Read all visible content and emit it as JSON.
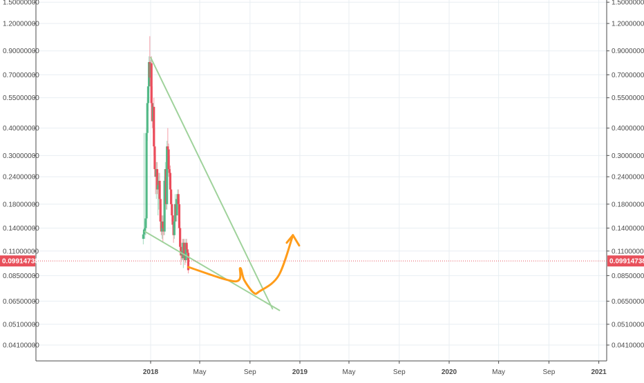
{
  "chart_data": {
    "type": "candlestick",
    "scale": "log",
    "grid": true,
    "y_ticks": [
      "1.50000000",
      "1.20000000",
      "0.90000000",
      "0.70000000",
      "0.55000000",
      "0.40000000",
      "0.30000000",
      "0.24000000",
      "0.18000000",
      "0.14000000",
      "0.11000000",
      "0.08500000",
      "0.06500000",
      "0.05100000",
      "0.04100000"
    ],
    "x_ticks": [
      "2018",
      "May",
      "Sep",
      "2019",
      "May",
      "Sep",
      "2020",
      "May",
      "Sep",
      "2021"
    ],
    "x_tick_dates": [
      "2018-01",
      "2018-05",
      "2018-09",
      "2019-01",
      "2019-05",
      "2019-09",
      "2020-01",
      "2020-05",
      "2020-09",
      "2021-01"
    ],
    "current_price": "0.09914738",
    "colors": {
      "up": "#53b987",
      "down": "#eb4d5c",
      "trendline": "#9fd29b",
      "projection": "#ff9c1a",
      "price_line": "#e8505b",
      "grid": "#e8eef2"
    },
    "candles": [
      {
        "date": "2017-12-14",
        "o": 0.125,
        "h": 0.135,
        "l": 0.118,
        "c": 0.131
      },
      {
        "date": "2017-12-16",
        "o": 0.131,
        "h": 0.38,
        "l": 0.125,
        "c": 0.138
      },
      {
        "date": "2017-12-18",
        "o": 0.136,
        "h": 0.15,
        "l": 0.125,
        "c": 0.14
      },
      {
        "date": "2017-12-20",
        "o": 0.14,
        "h": 0.16,
        "l": 0.13,
        "c": 0.155
      },
      {
        "date": "2017-12-22",
        "o": 0.155,
        "h": 0.4,
        "l": 0.145,
        "c": 0.38
      },
      {
        "date": "2017-12-24",
        "o": 0.38,
        "h": 0.55,
        "l": 0.35,
        "c": 0.52
      },
      {
        "date": "2017-12-26",
        "o": 0.52,
        "h": 0.8,
        "l": 0.48,
        "c": 0.62
      },
      {
        "date": "2017-12-28",
        "o": 0.62,
        "h": 0.85,
        "l": 0.58,
        "c": 0.8
      },
      {
        "date": "2017-12-30",
        "o": 0.8,
        "h": 1.05,
        "l": 0.62,
        "c": 0.68
      },
      {
        "date": "2018-01-01",
        "o": 0.68,
        "h": 0.82,
        "l": 0.62,
        "c": 0.79
      },
      {
        "date": "2018-01-03",
        "o": 0.79,
        "h": 0.85,
        "l": 0.5,
        "c": 0.52
      },
      {
        "date": "2018-01-05",
        "o": 0.52,
        "h": 0.62,
        "l": 0.4,
        "c": 0.43
      },
      {
        "date": "2018-01-07",
        "o": 0.43,
        "h": 0.52,
        "l": 0.38,
        "c": 0.5
      },
      {
        "date": "2018-01-09",
        "o": 0.5,
        "h": 0.55,
        "l": 0.3,
        "c": 0.33
      },
      {
        "date": "2018-01-11",
        "o": 0.33,
        "h": 0.4,
        "l": 0.24,
        "c": 0.26
      },
      {
        "date": "2018-01-13",
        "o": 0.26,
        "h": 0.3,
        "l": 0.2,
        "c": 0.24
      },
      {
        "date": "2018-01-15",
        "o": 0.24,
        "h": 0.28,
        "l": 0.19,
        "c": 0.26
      },
      {
        "date": "2018-01-17",
        "o": 0.26,
        "h": 0.28,
        "l": 0.2,
        "c": 0.21
      },
      {
        "date": "2018-01-19",
        "o": 0.21,
        "h": 0.24,
        "l": 0.16,
        "c": 0.22
      },
      {
        "date": "2018-01-21",
        "o": 0.22,
        "h": 0.25,
        "l": 0.17,
        "c": 0.23
      },
      {
        "date": "2018-01-23",
        "o": 0.23,
        "h": 0.25,
        "l": 0.18,
        "c": 0.19
      },
      {
        "date": "2018-01-25",
        "o": 0.19,
        "h": 0.22,
        "l": 0.14,
        "c": 0.15
      },
      {
        "date": "2018-01-27",
        "o": 0.15,
        "h": 0.18,
        "l": 0.13,
        "c": 0.135
      },
      {
        "date": "2018-01-29",
        "o": 0.135,
        "h": 0.16,
        "l": 0.125,
        "c": 0.15
      },
      {
        "date": "2018-01-31",
        "o": 0.15,
        "h": 0.16,
        "l": 0.12,
        "c": 0.14
      },
      {
        "date": "2018-02-02",
        "o": 0.14,
        "h": 0.155,
        "l": 0.13,
        "c": 0.135
      },
      {
        "date": "2018-02-04",
        "o": 0.135,
        "h": 0.24,
        "l": 0.13,
        "c": 0.23
      },
      {
        "date": "2018-02-06",
        "o": 0.23,
        "h": 0.28,
        "l": 0.22,
        "c": 0.26
      },
      {
        "date": "2018-02-08",
        "o": 0.26,
        "h": 0.27,
        "l": 0.17,
        "c": 0.18
      },
      {
        "date": "2018-02-10",
        "o": 0.18,
        "h": 0.35,
        "l": 0.17,
        "c": 0.33
      },
      {
        "date": "2018-02-12",
        "o": 0.33,
        "h": 0.4,
        "l": 0.3,
        "c": 0.32
      },
      {
        "date": "2018-02-14",
        "o": 0.32,
        "h": 0.34,
        "l": 0.24,
        "c": 0.26
      },
      {
        "date": "2018-02-16",
        "o": 0.26,
        "h": 0.3,
        "l": 0.22,
        "c": 0.25
      },
      {
        "date": "2018-02-18",
        "o": 0.25,
        "h": 0.27,
        "l": 0.2,
        "c": 0.21
      },
      {
        "date": "2018-02-20",
        "o": 0.21,
        "h": 0.23,
        "l": 0.17,
        "c": 0.18
      },
      {
        "date": "2018-02-22",
        "o": 0.18,
        "h": 0.2,
        "l": 0.15,
        "c": 0.16
      },
      {
        "date": "2018-02-24",
        "o": 0.16,
        "h": 0.17,
        "l": 0.14,
        "c": 0.145
      },
      {
        "date": "2018-02-26",
        "o": 0.145,
        "h": 0.16,
        "l": 0.12,
        "c": 0.13
      },
      {
        "date": "2018-02-28",
        "o": 0.13,
        "h": 0.16,
        "l": 0.125,
        "c": 0.15
      },
      {
        "date": "2018-03-02",
        "o": 0.15,
        "h": 0.2,
        "l": 0.14,
        "c": 0.18
      },
      {
        "date": "2018-03-04",
        "o": 0.18,
        "h": 0.19,
        "l": 0.15,
        "c": 0.16
      },
      {
        "date": "2018-03-06",
        "o": 0.16,
        "h": 0.2,
        "l": 0.15,
        "c": 0.19
      },
      {
        "date": "2018-03-08",
        "o": 0.19,
        "h": 0.21,
        "l": 0.17,
        "c": 0.2
      },
      {
        "date": "2018-03-10",
        "o": 0.2,
        "h": 0.21,
        "l": 0.17,
        "c": 0.18
      },
      {
        "date": "2018-03-12",
        "o": 0.18,
        "h": 0.19,
        "l": 0.13,
        "c": 0.14
      },
      {
        "date": "2018-03-14",
        "o": 0.14,
        "h": 0.15,
        "l": 0.11,
        "c": 0.115
      },
      {
        "date": "2018-03-16",
        "o": 0.115,
        "h": 0.12,
        "l": 0.095,
        "c": 0.105
      },
      {
        "date": "2018-03-18",
        "o": 0.105,
        "h": 0.12,
        "l": 0.1,
        "c": 0.11
      },
      {
        "date": "2018-03-20",
        "o": 0.11,
        "h": 0.125,
        "l": 0.1,
        "c": 0.102
      },
      {
        "date": "2018-03-22",
        "o": 0.102,
        "h": 0.125,
        "l": 0.092,
        "c": 0.12
      },
      {
        "date": "2018-03-24",
        "o": 0.12,
        "h": 0.125,
        "l": 0.1,
        "c": 0.105
      },
      {
        "date": "2018-03-26",
        "o": 0.105,
        "h": 0.115,
        "l": 0.095,
        "c": 0.1
      },
      {
        "date": "2018-03-28",
        "o": 0.1,
        "h": 0.125,
        "l": 0.097,
        "c": 0.12
      },
      {
        "date": "2018-03-30",
        "o": 0.12,
        "h": 0.125,
        "l": 0.108,
        "c": 0.112
      },
      {
        "date": "2018-04-01",
        "o": 0.112,
        "h": 0.118,
        "l": 0.1,
        "c": 0.108
      },
      {
        "date": "2018-04-03",
        "o": 0.108,
        "h": 0.11,
        "l": 0.087,
        "c": 0.09
      }
    ],
    "annotations": [
      {
        "type": "trendline",
        "name": "upper-trendline",
        "points": [
          {
            "date": "2018-01-01",
            "y": 0.84
          },
          {
            "date": "2018-10-26",
            "y": 0.06
          }
        ]
      },
      {
        "type": "trendline",
        "name": "lower-trendline",
        "points": [
          {
            "date": "2017-12-18",
            "y": 0.135
          },
          {
            "date": "2018-11-12",
            "y": 0.059
          }
        ]
      },
      {
        "type": "projection-path",
        "name": "orange-projection",
        "points": [
          {
            "date": "2018-04-03",
            "y": 0.093
          },
          {
            "date": "2018-07-27",
            "y": 0.08
          },
          {
            "date": "2018-08-08",
            "y": 0.092
          },
          {
            "date": "2018-08-18",
            "y": 0.081
          },
          {
            "date": "2018-09-10",
            "y": 0.071
          },
          {
            "date": "2018-09-24",
            "y": 0.072
          },
          {
            "date": "2018-11-10",
            "y": 0.085
          },
          {
            "date": "2018-12-15",
            "y": 0.13
          }
        ]
      }
    ]
  }
}
